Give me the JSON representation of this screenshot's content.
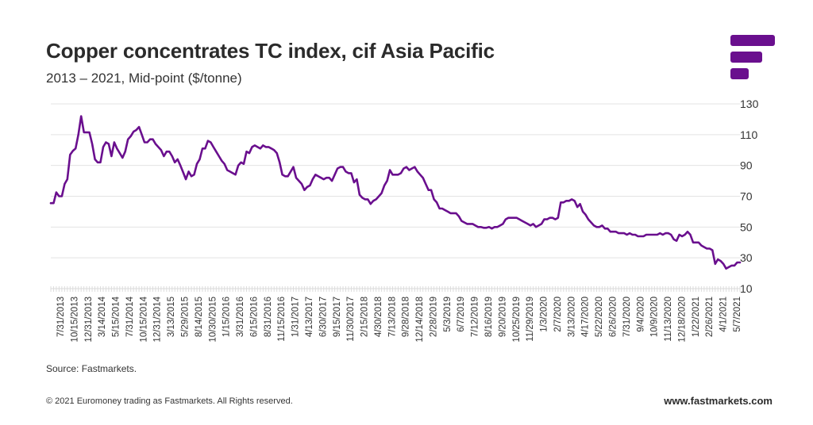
{
  "header": {
    "title": "Copper concentrates TC index, cif Asia Pacific",
    "subtitle": "2013 – 2021, Mid-point ($/tonne)"
  },
  "logo": {
    "name": "fastmarkets-logo",
    "color": "#6a0f8e"
  },
  "footer": {
    "source": "Source: Fastmarkets.",
    "copyright": "© 2021 Euromoney trading as Fastmarkets. All Rights reserved.",
    "website": "www.fastmarkets.com"
  },
  "chart_data": {
    "type": "line",
    "title": "Copper concentrates TC index, cif Asia Pacific",
    "subtitle": "2013 – 2021, Mid-point ($/tonne)",
    "xlabel": "",
    "ylabel": "",
    "ylim": [
      10,
      130
    ],
    "yticks": [
      10,
      30,
      50,
      70,
      90,
      110,
      130
    ],
    "y_axis_side": "right",
    "grid": true,
    "legend": "none",
    "line_color": "#6a0f8e",
    "gridline_color": "#e3e3e3",
    "x_tick_labels": [
      "7/31/2013",
      "10/15/2013",
      "12/31/2013",
      "3/14/2014",
      "5/15/2014",
      "7/31/2014",
      "10/15/2014",
      "12/31/2014",
      "3/13/2015",
      "5/29/2015",
      "8/14/2015",
      "10/30/2015",
      "1/15/2016",
      "3/31/2016",
      "6/15/2016",
      "8/31/2016",
      "11/15/2016",
      "1/31/2017",
      "4/13/2017",
      "6/30/2017",
      "9/15/2017",
      "11/30/2017",
      "2/15/2018",
      "4/30/2018",
      "7/13/2018",
      "9/28/2018",
      "12/14/2018",
      "2/28/2019",
      "5/3/2019",
      "6/7/2019",
      "7/12/2019",
      "8/16/2019",
      "9/20/2019",
      "10/25/2019",
      "11/29/2019",
      "1/3/2020",
      "2/7/2020",
      "3/13/2020",
      "4/17/2020",
      "5/22/2020",
      "6/26/2020",
      "7/31/2020",
      "9/4/2020",
      "10/9/2020",
      "11/13/2020",
      "12/18/2020",
      "1/22/2021",
      "2/26/2021",
      "4/1/2021",
      "5/7/2021"
    ],
    "series": [
      {
        "name": "Copper concentrates TC index, cif Asia Pacific (mid-point)",
        "values": [
          65.5,
          65.5,
          72.5,
          70,
          70,
          78,
          81,
          97,
          99.5,
          101,
          110,
          122,
          111.5,
          111.5,
          111.5,
          104,
          94,
          92,
          92,
          102,
          105,
          104,
          96,
          105,
          101,
          98,
          95,
          99,
          107,
          109,
          112,
          113,
          115,
          110,
          105,
          105,
          107,
          107,
          104,
          102,
          100,
          96,
          99,
          99,
          96,
          92,
          94,
          90,
          85.5,
          81,
          86,
          83,
          84,
          91,
          94,
          101,
          101,
          106,
          105,
          102,
          99,
          96,
          93,
          91,
          87,
          86,
          85,
          84,
          90,
          92,
          91,
          99,
          98,
          102,
          103,
          102,
          101,
          103,
          102,
          102,
          101,
          100,
          98,
          92,
          84,
          83,
          83,
          86,
          89,
          82,
          80,
          78,
          74,
          76,
          77,
          81,
          84,
          83,
          82,
          81,
          82,
          82,
          80,
          84,
          88,
          89,
          89,
          86,
          85,
          85,
          79,
          81,
          71,
          69,
          68,
          68,
          65,
          67,
          68,
          70,
          72,
          77,
          80,
          87,
          84,
          84,
          84,
          85,
          88,
          89,
          87,
          88,
          89,
          86,
          84,
          82,
          78,
          74,
          74,
          68,
          66,
          62,
          62,
          61,
          60,
          59,
          59,
          59,
          57,
          54,
          53,
          52,
          52,
          52,
          51,
          50,
          50,
          49.5,
          49.5,
          50,
          49,
          50,
          50,
          51,
          52,
          55,
          56,
          56,
          56,
          56,
          55,
          54,
          53,
          52,
          51,
          52,
          50,
          51,
          52,
          55,
          55,
          56,
          56,
          55,
          56,
          66,
          66,
          67,
          67,
          68,
          67,
          63,
          65,
          60,
          58,
          55,
          53,
          51,
          50,
          50,
          51,
          49,
          49,
          47,
          47,
          47,
          46,
          46,
          46,
          45,
          46,
          45,
          45,
          44,
          44,
          44,
          45,
          45,
          45,
          45,
          45,
          46,
          45,
          46,
          46,
          45,
          42,
          41,
          45,
          44,
          45,
          47,
          45,
          40,
          40,
          40,
          38,
          37,
          36,
          36,
          35,
          26,
          29,
          28,
          26,
          23,
          24,
          25,
          25,
          27,
          27
        ]
      }
    ]
  }
}
